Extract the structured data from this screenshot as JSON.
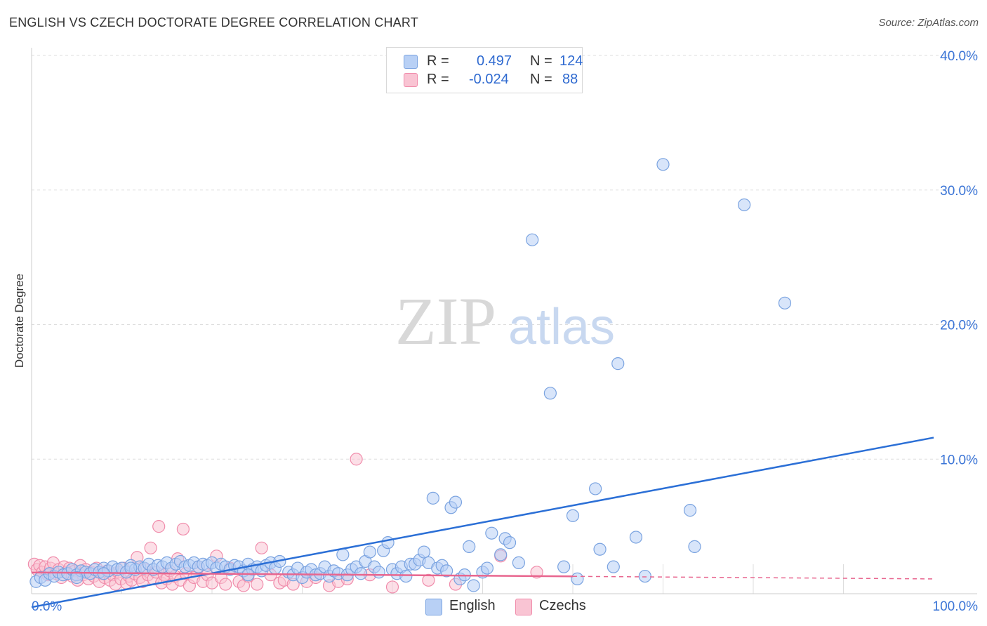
{
  "title": "ENGLISH VS CZECH DOCTORATE DEGREE CORRELATION CHART",
  "source": "Source: ZipAtlas.com",
  "watermark": {
    "zip": "ZIP",
    "atlas": "atlas"
  },
  "legend": {
    "rows": [
      {
        "r_label": "R =",
        "r_value": "0.497",
        "n_label": "N =",
        "n_value": "124"
      },
      {
        "r_label": "R =",
        "r_value": "-0.024",
        "n_label": "N =",
        "n_value": "88"
      }
    ]
  },
  "bottom_legend": [
    "English",
    "Czechs"
  ],
  "colors": {
    "english_fill": "#b8d0f5",
    "english_stroke": "#7aa3e0",
    "english_line": "#2b6fd6",
    "czech_fill": "#f9c4d3",
    "czech_stroke": "#f08cab",
    "czech_line": "#e8668f",
    "tick_text": "#3a74d6",
    "grid": "#dddddd"
  },
  "chart_data": {
    "type": "scatter",
    "title": "ENGLISH VS CZECH DOCTORATE DEGREE CORRELATION CHART",
    "xlabel": "",
    "ylabel": "Doctorate Degree",
    "xlim": [
      0,
      100
    ],
    "ylim": [
      0,
      40
    ],
    "x_tick_labels": [
      "0.0%",
      "100.0%"
    ],
    "y_ticks": [
      10,
      20,
      30,
      40
    ],
    "y_tick_labels": [
      "10.0%",
      "20.0%",
      "30.0%",
      "40.0%"
    ],
    "series": [
      {
        "name": "English",
        "r": 0.497,
        "n": 124,
        "trend": {
          "x": [
            0,
            100
          ],
          "y": [
            -1.0,
            11.6
          ]
        },
        "points": [
          [
            0.5,
            0.9
          ],
          [
            1,
            1.2
          ],
          [
            1.5,
            1.0
          ],
          [
            2,
            1.5
          ],
          [
            2.5,
            1.3
          ],
          [
            3,
            1.6
          ],
          [
            3.5,
            1.4
          ],
          [
            4,
            1.5
          ],
          [
            4.5,
            1.8
          ],
          [
            5,
            1.4
          ],
          [
            5.5,
            1.7
          ],
          [
            6,
            1.6
          ],
          [
            6.5,
            1.5
          ],
          [
            7,
            1.8
          ],
          [
            7.5,
            1.6
          ],
          [
            8,
            1.9
          ],
          [
            8.5,
            1.7
          ],
          [
            9,
            2.0
          ],
          [
            9.5,
            1.8
          ],
          [
            10,
            1.9
          ],
          [
            10.5,
            1.6
          ],
          [
            11,
            2.1
          ],
          [
            11.5,
            1.8
          ],
          [
            12,
            2.0
          ],
          [
            12.5,
            1.9
          ],
          [
            13,
            2.2
          ],
          [
            13.5,
            1.8
          ],
          [
            14,
            2.1
          ],
          [
            14.5,
            2.0
          ],
          [
            15,
            2.3
          ],
          [
            15.5,
            1.9
          ],
          [
            16,
            2.2
          ],
          [
            16.5,
            2.4
          ],
          [
            17,
            2.0
          ],
          [
            17.5,
            2.1
          ],
          [
            18,
            2.3
          ],
          [
            18.5,
            2.0
          ],
          [
            19,
            2.2
          ],
          [
            19.5,
            2.1
          ],
          [
            20,
            2.3
          ],
          [
            20.5,
            1.9
          ],
          [
            21,
            2.2
          ],
          [
            21.5,
            2.0
          ],
          [
            22,
            1.8
          ],
          [
            22.5,
            2.1
          ],
          [
            23,
            2.0
          ],
          [
            23.5,
            1.7
          ],
          [
            24,
            2.2
          ],
          [
            24.5,
            1.8
          ],
          [
            25,
            2.0
          ],
          [
            25.5,
            1.7
          ],
          [
            26,
            2.1
          ],
          [
            26.5,
            2.3
          ],
          [
            27,
            1.9
          ],
          [
            27.5,
            2.4
          ],
          [
            28.5,
            1.6
          ],
          [
            29,
            1.4
          ],
          [
            29.5,
            1.9
          ],
          [
            30,
            1.2
          ],
          [
            30.5,
            1.6
          ],
          [
            31,
            1.8
          ],
          [
            31.5,
            1.4
          ],
          [
            32,
            1.5
          ],
          [
            32.5,
            2.0
          ],
          [
            33,
            1.3
          ],
          [
            33.5,
            1.7
          ],
          [
            34,
            1.5
          ],
          [
            34.5,
            2.9
          ],
          [
            35,
            1.4
          ],
          [
            35.5,
            1.8
          ],
          [
            36,
            2.0
          ],
          [
            36.5,
            1.5
          ],
          [
            37,
            2.4
          ],
          [
            37.5,
            3.1
          ],
          [
            38,
            2.0
          ],
          [
            38.5,
            1.6
          ],
          [
            39,
            3.2
          ],
          [
            39.5,
            3.8
          ],
          [
            40,
            1.8
          ],
          [
            40.5,
            1.5
          ],
          [
            41,
            2.0
          ],
          [
            41.5,
            1.3
          ],
          [
            42,
            2.2
          ],
          [
            42.5,
            2.2
          ],
          [
            43,
            2.5
          ],
          [
            43.5,
            3.1
          ],
          [
            44,
            2.3
          ],
          [
            44.5,
            7.1
          ],
          [
            45,
            1.9
          ],
          [
            45.5,
            2.1
          ],
          [
            46,
            1.7
          ],
          [
            46.5,
            6.4
          ],
          [
            47,
            6.8
          ],
          [
            47.5,
            1.1
          ],
          [
            48,
            1.4
          ],
          [
            48.5,
            3.5
          ],
          [
            49,
            0.6
          ],
          [
            50,
            1.6
          ],
          [
            50.5,
            1.9
          ],
          [
            51,
            4.5
          ],
          [
            52,
            2.9
          ],
          [
            52.5,
            4.1
          ],
          [
            53,
            3.8
          ],
          [
            54,
            2.3
          ],
          [
            55.5,
            26.3
          ],
          [
            57.5,
            14.9
          ],
          [
            59,
            2.0
          ],
          [
            60,
            5.8
          ],
          [
            60.5,
            1.1
          ],
          [
            62.5,
            7.8
          ],
          [
            63,
            3.3
          ],
          [
            64.5,
            2.0
          ],
          [
            65,
            17.1
          ],
          [
            67,
            4.2
          ],
          [
            68,
            1.3
          ],
          [
            70,
            31.9
          ],
          [
            73,
            6.2
          ],
          [
            73.5,
            3.5
          ],
          [
            79,
            28.9
          ],
          [
            83.5,
            21.6
          ],
          [
            24,
            1.4
          ],
          [
            11,
            1.9
          ],
          [
            5,
            1.2
          ],
          [
            8,
            1.5
          ]
        ]
      },
      {
        "name": "Czechs",
        "r": -0.024,
        "n": 88,
        "trend": {
          "x": [
            0,
            60
          ],
          "y": [
            1.58,
            1.29
          ]
        },
        "trend_dashed": {
          "x": [
            60,
            100
          ],
          "y": [
            1.29,
            1.1
          ]
        },
        "points": [
          [
            0.3,
            2.2
          ],
          [
            0.6,
            1.8
          ],
          [
            0.9,
            2.1
          ],
          [
            1.2,
            1.6
          ],
          [
            1.5,
            2.0
          ],
          [
            1.8,
            1.4
          ],
          [
            2.1,
            1.9
          ],
          [
            2.4,
            2.3
          ],
          [
            2.7,
            1.5
          ],
          [
            3,
            1.8
          ],
          [
            3.3,
            1.2
          ],
          [
            3.6,
            2.0
          ],
          [
            3.9,
            1.6
          ],
          [
            4.2,
            1.9
          ],
          [
            4.5,
            1.3
          ],
          [
            4.8,
            1.7
          ],
          [
            5.1,
            1.0
          ],
          [
            5.4,
            2.1
          ],
          [
            5.7,
            1.4
          ],
          [
            6,
            1.8
          ],
          [
            6.3,
            1.1
          ],
          [
            6.6,
            1.6
          ],
          [
            6.9,
            1.3
          ],
          [
            7.2,
            1.9
          ],
          [
            7.5,
            0.9
          ],
          [
            7.8,
            1.5
          ],
          [
            8.1,
            1.2
          ],
          [
            8.4,
            1.7
          ],
          [
            8.7,
            1.0
          ],
          [
            9,
            1.4
          ],
          [
            9.3,
            0.7
          ],
          [
            9.6,
            1.6
          ],
          [
            9.9,
            1.1
          ],
          [
            10.2,
            1.9
          ],
          [
            10.5,
            0.8
          ],
          [
            10.8,
            1.3
          ],
          [
            11.1,
            1.0
          ],
          [
            11.4,
            1.5
          ],
          [
            11.7,
            2.7
          ],
          [
            12,
            1.2
          ],
          [
            12.3,
            0.9
          ],
          [
            12.6,
            1.8
          ],
          [
            12.9,
            1.4
          ],
          [
            13.2,
            3.4
          ],
          [
            13.5,
            1.1
          ],
          [
            13.8,
            1.6
          ],
          [
            14.1,
            5.0
          ],
          [
            14.4,
            0.8
          ],
          [
            14.7,
            1.4
          ],
          [
            15,
            1.1
          ],
          [
            15.3,
            1.7
          ],
          [
            15.6,
            0.7
          ],
          [
            15.9,
            1.3
          ],
          [
            16.2,
            2.6
          ],
          [
            16.5,
            1.0
          ],
          [
            16.8,
            4.8
          ],
          [
            17.1,
            1.5
          ],
          [
            17.5,
            0.6
          ],
          [
            18,
            1.2
          ],
          [
            18.5,
            2.0
          ],
          [
            19,
            0.9
          ],
          [
            19.5,
            1.4
          ],
          [
            20,
            0.8
          ],
          [
            20.5,
            2.8
          ],
          [
            21,
            1.2
          ],
          [
            21.5,
            0.7
          ],
          [
            22,
            1.9
          ],
          [
            23,
            0.9
          ],
          [
            23.5,
            0.6
          ],
          [
            24,
            1.3
          ],
          [
            25,
            0.7
          ],
          [
            25.5,
            3.4
          ],
          [
            26.5,
            1.4
          ],
          [
            27.5,
            0.8
          ],
          [
            28,
            1.0
          ],
          [
            29,
            0.7
          ],
          [
            30.5,
            0.9
          ],
          [
            31.5,
            1.2
          ],
          [
            33,
            0.6
          ],
          [
            34,
            0.9
          ],
          [
            35,
            1.1
          ],
          [
            36,
            10.0
          ],
          [
            37.5,
            1.4
          ],
          [
            40,
            0.5
          ],
          [
            44,
            1.0
          ],
          [
            47,
            0.7
          ],
          [
            52,
            2.8
          ],
          [
            56,
            1.6
          ]
        ]
      }
    ]
  }
}
